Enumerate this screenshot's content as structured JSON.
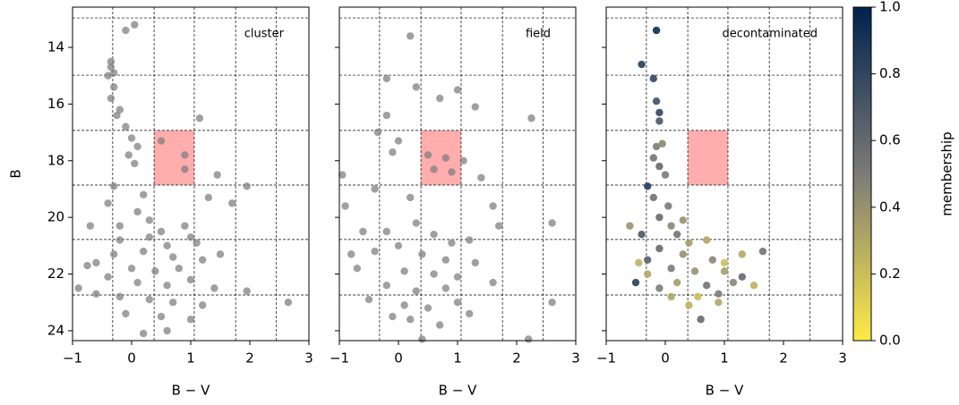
{
  "chart_data": [
    {
      "type": "scatter",
      "annotation": "cluster",
      "xlabel": "B − V",
      "ylabel": "B",
      "show_yticklabels": true,
      "xlim": [
        -1,
        3
      ],
      "ylim": [
        24.35,
        12.58
      ],
      "xticks": [
        {
          "value": -1,
          "label": "−1"
        },
        0,
        1,
        2,
        3
      ],
      "yticks": [
        14,
        16,
        18,
        20,
        22,
        24
      ],
      "grid_x": [
        -0.32,
        0.38,
        1.06,
        1.76,
        2.45
      ],
      "grid_y": [
        12.96,
        14.98,
        16.93,
        18.86,
        20.78,
        22.74
      ],
      "highlight": {
        "x": [
          0.38,
          1.06
        ],
        "y": [
          16.93,
          18.86
        ],
        "color": "#ff9999"
      },
      "series": [
        {
          "color": "#808080",
          "x": [
            0.05,
            -0.1,
            -0.35,
            -0.35,
            -0.3,
            -0.4,
            -0.3,
            -0.35,
            -0.2,
            -0.25,
            -0.1,
            0,
            0.1,
            -0.05,
            0.05,
            0.5,
            0.9,
            0.9,
            1.15,
            1.45,
            1.3,
            1.7,
            1.95,
            -0.3,
            -0.4,
            0.2,
            0.1,
            0.3,
            -0.2,
            -0.7,
            0.5,
            0.9,
            1.0,
            0.6,
            0.2,
            -0.3,
            -0.6,
            -0.75,
            0.0,
            0.4,
            0.8,
            1.2,
            1.5,
            -0.4,
            0.1,
            0.6,
            1.0,
            1.4,
            -0.9,
            -0.6,
            -0.2,
            0.3,
            0.7,
            1.2,
            1.95,
            2.65,
            -0.1,
            0.5,
            1.0,
            0.2,
            0.6,
            -0.2,
            0.3,
            0.7,
            1.1
          ],
          "y": [
            13.2,
            13.4,
            14.5,
            14.7,
            14.9,
            15.0,
            15.4,
            15.8,
            16.2,
            16.4,
            16.8,
            17.2,
            17.5,
            17.8,
            18.1,
            17.3,
            17.8,
            18.3,
            16.5,
            18.5,
            19.3,
            19.5,
            18.9,
            18.9,
            19.5,
            19.2,
            19.8,
            20.1,
            20.3,
            20.3,
            20.5,
            20.3,
            20.7,
            21.0,
            21.2,
            21.3,
            21.6,
            21.7,
            21.8,
            21.9,
            21.8,
            21.5,
            21.3,
            22.1,
            22.3,
            22.4,
            22.2,
            22.5,
            22.5,
            22.7,
            22.8,
            22.9,
            23.0,
            23.1,
            22.6,
            23.0,
            23.4,
            23.5,
            23.6,
            24.1,
            24.0,
            20.8,
            20.7,
            21.4,
            20.9
          ]
        }
      ]
    },
    {
      "type": "scatter",
      "annotation": "field",
      "xlabel": "B − V",
      "show_yticklabels": false,
      "xlim": [
        -1,
        3
      ],
      "ylim": [
        24.35,
        12.58
      ],
      "xticks": [
        {
          "value": -1,
          "label": "−1"
        },
        0,
        1,
        2,
        3
      ],
      "yticks": [
        14,
        16,
        18,
        20,
        22,
        24
      ],
      "grid_x": [
        -0.32,
        0.38,
        1.06,
        1.76,
        2.45
      ],
      "grid_y": [
        12.96,
        14.98,
        16.93,
        18.86,
        20.78,
        22.74
      ],
      "highlight": {
        "x": [
          0.38,
          1.06
        ],
        "y": [
          16.93,
          18.86
        ],
        "color": "#ff9999"
      },
      "series": [
        {
          "color": "#808080",
          "x": [
            0.2,
            0.7,
            -0.2,
            0.3,
            1.3,
            1.0,
            2.25,
            -0.2,
            -0.35,
            0,
            -0.1,
            0.5,
            0.8,
            0.6,
            0.9,
            -0.95,
            1.1,
            1.4,
            1.6,
            -0.4,
            0.2,
            -0.9,
            1.7,
            2.6,
            0.3,
            -0.2,
            -0.6,
            0.6,
            0.9,
            1.2,
            0.0,
            -0.4,
            0.4,
            0.8,
            1.3,
            -0.7,
            0.1,
            0.6,
            1.0,
            -0.2,
            0.3,
            0.8,
            1.6,
            -0.5,
            0.1,
            0.5,
            1.0,
            2.6,
            0.2,
            0.7,
            0.4,
            2.2,
            -0.1,
            1.2,
            -0.8
          ],
          "y": [
            13.6,
            15.8,
            15.1,
            15.4,
            16.1,
            15.5,
            16.5,
            16.4,
            17.0,
            17.3,
            17.7,
            17.8,
            17.9,
            18.3,
            18.4,
            18.5,
            18.0,
            18.6,
            19.6,
            19.0,
            19.3,
            19.6,
            20.3,
            20.2,
            20.2,
            20.5,
            20.5,
            20.6,
            20.9,
            20.8,
            21.0,
            21.2,
            21.3,
            21.5,
            21.6,
            21.8,
            21.9,
            22.0,
            22.1,
            22.4,
            22.6,
            22.5,
            22.3,
            22.9,
            23.1,
            23.2,
            23.0,
            23.0,
            23.6,
            23.8,
            24.3,
            24.3,
            23.5,
            23.4,
            21.3
          ]
        }
      ]
    },
    {
      "type": "scatter",
      "annotation": "decontaminated",
      "xlabel": "B − V",
      "show_yticklabels": false,
      "xlim": [
        -1,
        3
      ],
      "ylim": [
        24.35,
        12.58
      ],
      "xticks": [
        {
          "value": -1,
          "label": "−1"
        },
        0,
        1,
        2,
        3
      ],
      "yticks": [
        14,
        16,
        18,
        20,
        22,
        24
      ],
      "grid_x": [
        -0.32,
        0.38,
        1.06,
        1.76,
        2.45
      ],
      "grid_y": [
        12.96,
        14.98,
        16.93,
        18.86,
        20.78,
        22.74
      ],
      "highlight": {
        "x": [
          0.38,
          1.06
        ],
        "y": [
          16.93,
          18.86
        ],
        "color": "#ff9999"
      },
      "colormap": [
        "#ffea46",
        "#7c7b78",
        "#00224e"
      ],
      "colorbar": {
        "label": "membership",
        "lim": [
          0,
          1
        ],
        "ticks": [
          {
            "value": 0,
            "label": "0.0"
          },
          0.2,
          0.4,
          0.6,
          0.8,
          {
            "value": 1,
            "label": "1.0"
          }
        ]
      },
      "series": [
        {
          "x": [
            -0.15,
            -0.4,
            -0.2,
            -0.15,
            -0.1,
            -0.1,
            -0.15,
            -0.05,
            -0.2,
            -0.1,
            0,
            -0.3,
            -0.2,
            0.05,
            -0.1,
            0.1,
            0.3,
            -0.4,
            -0.6,
            0.2,
            0.4,
            0.7,
            -0.1,
            0.3,
            0.8,
            1.3,
            1.65,
            -0.45,
            0.1,
            0.5,
            1.0,
            1.3,
            -0.5,
            -0.3,
            0.2,
            0.7,
            1.15,
            1.5,
            0.1,
            0.9,
            0.4,
            0.9,
            0.6,
            -0.1,
            1.0,
            0.55,
            -0.3
          ],
          "y": [
            13.4,
            14.6,
            15.1,
            15.9,
            16.3,
            16.6,
            17.5,
            17.4,
            17.9,
            18.2,
            18.5,
            18.9,
            19.3,
            19.6,
            20.0,
            20.3,
            20.1,
            20.6,
            20.3,
            20.6,
            20.9,
            20.8,
            21.1,
            21.3,
            21.5,
            21.3,
            21.2,
            21.6,
            21.8,
            21.9,
            21.9,
            22.1,
            22.3,
            22.0,
            22.3,
            22.4,
            22.3,
            22.4,
            22.8,
            22.7,
            23.1,
            23.0,
            23.6,
            22.5,
            21.6,
            22.8,
            21.5
          ],
          "membership": [
            0.95,
            0.85,
            0.8,
            0.75,
            0.8,
            0.7,
            0.5,
            0.45,
            0.55,
            0.6,
            0.5,
            0.85,
            0.55,
            0.5,
            0.6,
            0.45,
            0.4,
            0.7,
            0.4,
            0.55,
            0.35,
            0.3,
            0.6,
            0.4,
            0.45,
            0.3,
            0.55,
            0.25,
            0.5,
            0.4,
            0.35,
            0.6,
            0.85,
            0.3,
            0.35,
            0.55,
            0.45,
            0.25,
            0.3,
            0.5,
            0.25,
            0.3,
            0.6,
            0.5,
            0.2,
            0.2,
            0.65
          ]
        }
      ]
    }
  ]
}
